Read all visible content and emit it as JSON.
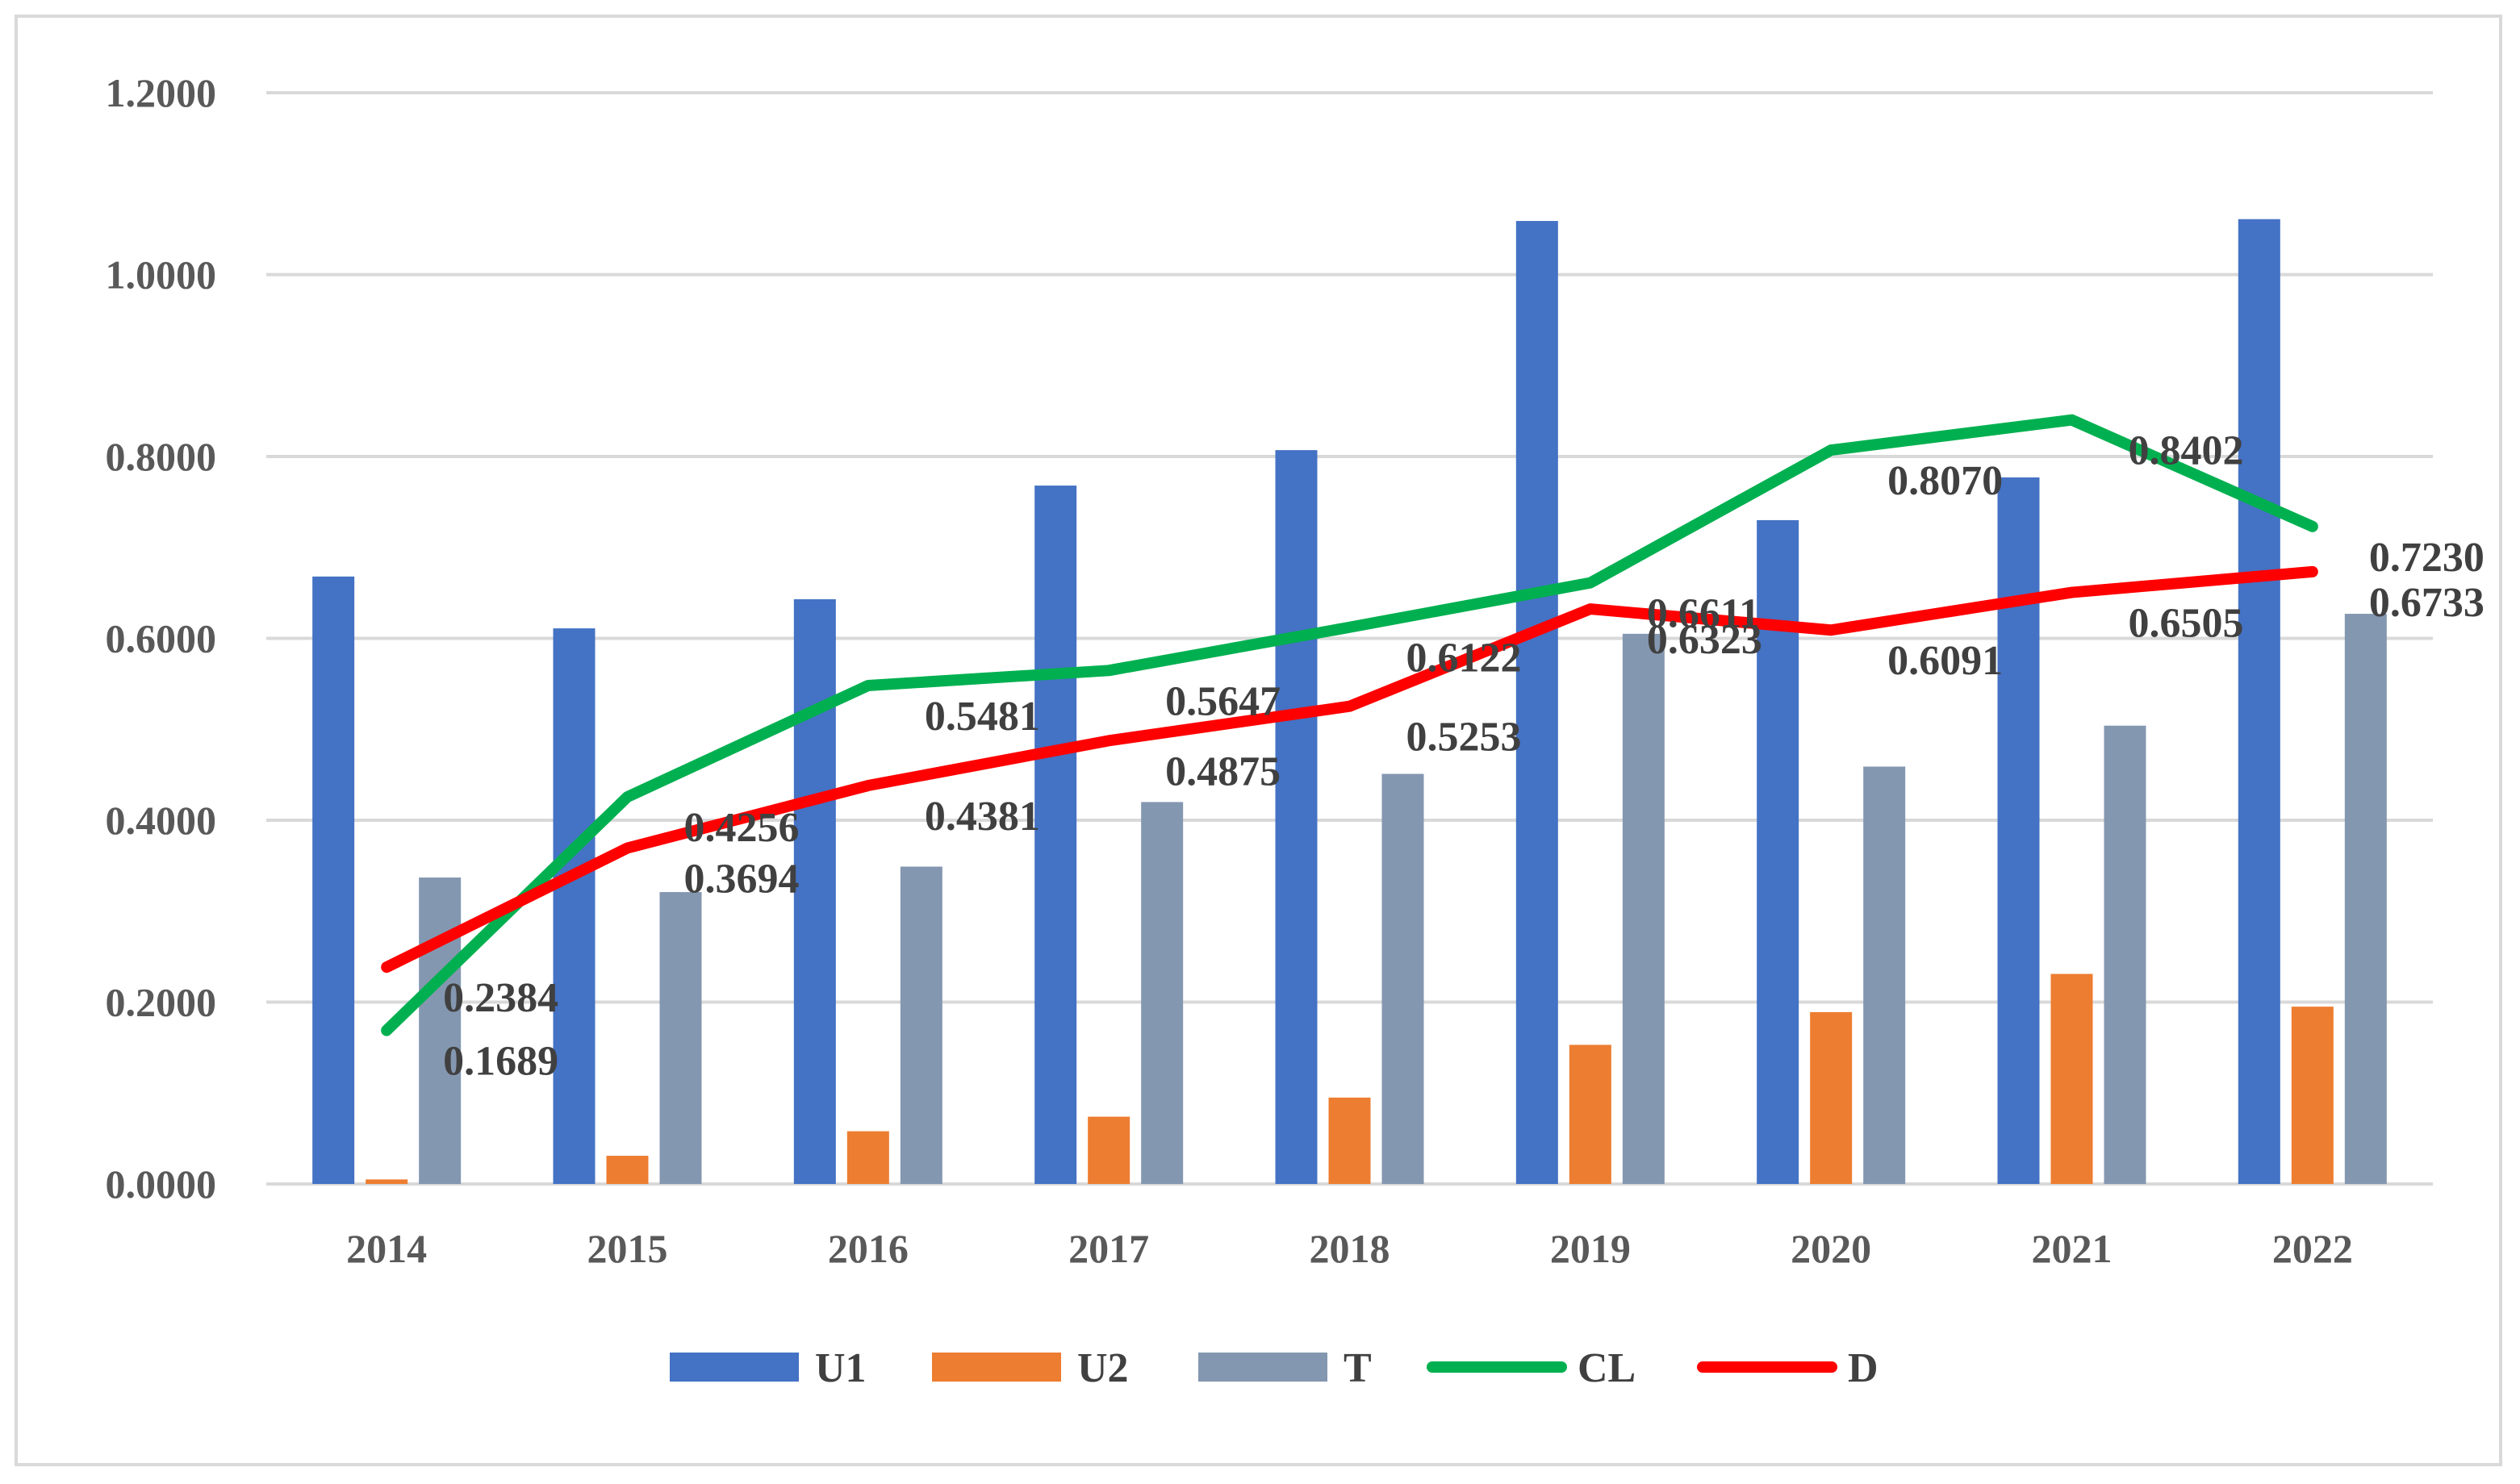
{
  "chart_data": {
    "type": "bar",
    "categories": [
      "2014",
      "2015",
      "2016",
      "2017",
      "2018",
      "2019",
      "2020",
      "2021",
      "2022"
    ],
    "ylim": [
      0,
      1.2
    ],
    "yticks": [
      "0.0000",
      "0.2000",
      "0.4000",
      "0.6000",
      "0.8000",
      "1.0000",
      "1.2000"
    ],
    "grid": true,
    "legend_position": "bottom",
    "series": [
      {
        "name": "U1",
        "type": "bar",
        "color": "#4472c4",
        "values": [
          0.668,
          0.611,
          0.643,
          0.768,
          0.807,
          1.059,
          0.73,
          0.777,
          1.061
        ]
      },
      {
        "name": "U2",
        "type": "bar",
        "color": "#ed7d31",
        "values": [
          0.005,
          0.031,
          0.058,
          0.074,
          0.095,
          0.153,
          0.189,
          0.231,
          0.195
        ]
      },
      {
        "name": "T",
        "type": "bar",
        "color": "#8497b0",
        "values": [
          0.337,
          0.321,
          0.349,
          0.42,
          0.451,
          0.605,
          0.459,
          0.504,
          0.627
        ]
      },
      {
        "name": "CL",
        "type": "line",
        "color": "#00b050",
        "values": [
          0.1689,
          0.4256,
          0.5481,
          0.5647,
          0.6122,
          0.6611,
          0.807,
          0.8402,
          0.723
        ],
        "labels": [
          "0.1689",
          "0.4256",
          "0.5481",
          "0.5647",
          "0.6122",
          "0.6611",
          "0.8070",
          "0.8402",
          "0.7230"
        ]
      },
      {
        "name": "D",
        "type": "line",
        "color": "#ff0000",
        "values": [
          0.2384,
          0.3694,
          0.4381,
          0.4875,
          0.5253,
          0.6323,
          0.6091,
          0.6505,
          0.6733
        ],
        "labels": [
          "0.2384",
          "0.3694",
          "0.4381",
          "0.4875",
          "0.5253",
          "0.6323",
          "0.6091",
          "0.6505",
          "0.6733"
        ]
      }
    ]
  }
}
